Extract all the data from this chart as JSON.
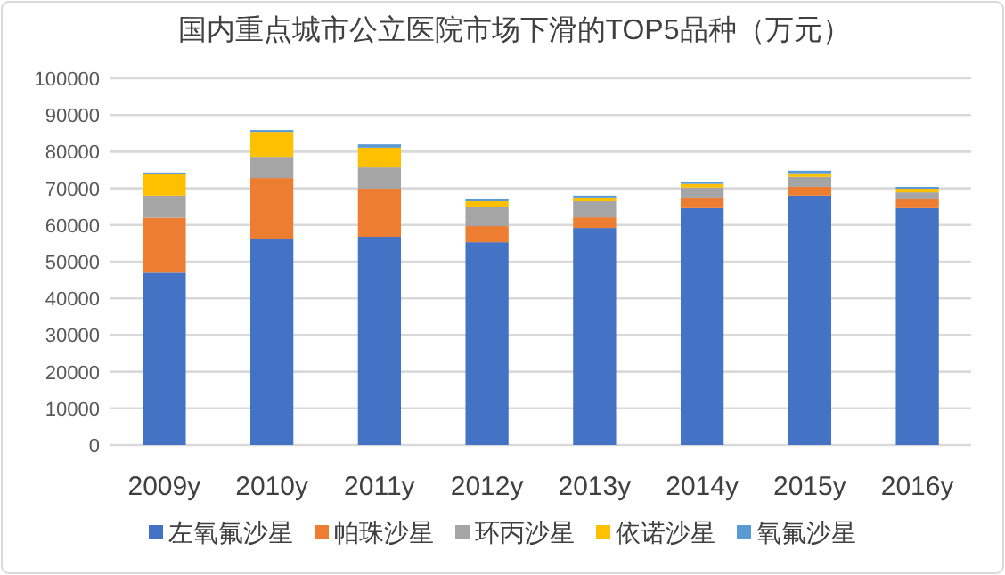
{
  "chart_data": {
    "type": "bar",
    "stacked": true,
    "title": "国内重点城市公立医院市场下滑的TOP5品种（万元）",
    "categories": [
      "2009y",
      "2010y",
      "2011y",
      "2012y",
      "2013y",
      "2014y",
      "2015y",
      "2016y"
    ],
    "series": [
      {
        "name": "左氧氟沙星",
        "color": "#4472c4",
        "values": [
          47000,
          56300,
          56800,
          55300,
          59200,
          64600,
          68000,
          64600
        ]
      },
      {
        "name": "帕珠沙星",
        "color": "#ed7d31",
        "values": [
          15000,
          16500,
          13100,
          4400,
          2900,
          2900,
          2400,
          2400
        ]
      },
      {
        "name": "环丙沙星",
        "color": "#a5a5a5",
        "values": [
          6000,
          5800,
          5800,
          5300,
          4400,
          2700,
          2700,
          1900
        ]
      },
      {
        "name": "依诺沙星",
        "color": "#ffc000",
        "values": [
          5800,
          6800,
          5400,
          1500,
          1000,
          1000,
          1000,
          1000
        ]
      },
      {
        "name": "氧氟沙星",
        "color": "#5b9bd5",
        "values": [
          500,
          500,
          900,
          500,
          500,
          600,
          700,
          500
        ]
      }
    ],
    "ylim": [
      0,
      100000
    ],
    "yticks": [
      0,
      10000,
      20000,
      30000,
      40000,
      50000,
      60000,
      70000,
      80000,
      90000,
      100000
    ],
    "grid": "y",
    "legend": "bottom"
  }
}
